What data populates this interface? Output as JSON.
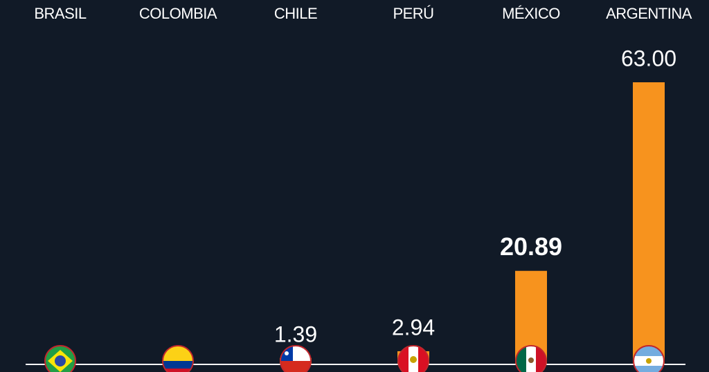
{
  "chart_data": {
    "type": "bar",
    "categories": [
      "BRASIL",
      "COLOMBIA",
      "CHILE",
      "PERÚ",
      "MÉXICO",
      "ARGENTINA"
    ],
    "values": [
      null,
      null,
      1.39,
      2.94,
      20.89,
      63
    ],
    "value_labels": [
      null,
      null,
      "1.39",
      "2.94",
      "20.89",
      "63.00"
    ],
    "color": "#f7931e"
  }
}
